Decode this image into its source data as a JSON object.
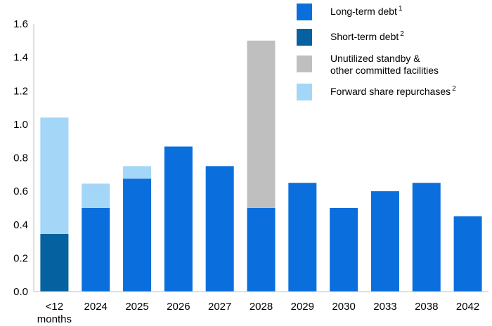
{
  "chart_data": {
    "type": "bar",
    "stacked": true,
    "categories": [
      "<12 months",
      "2024",
      "2025",
      "2026",
      "2027",
      "2028",
      "2029",
      "2030",
      "2033",
      "2038",
      "2042"
    ],
    "category_lines": [
      [
        "<12",
        "months"
      ],
      [
        "2024"
      ],
      [
        "2025"
      ],
      [
        "2026"
      ],
      [
        "2027"
      ],
      [
        "2028"
      ],
      [
        "2029"
      ],
      [
        "2030"
      ],
      [
        "2033"
      ],
      [
        "2038"
      ],
      [
        "2042"
      ]
    ],
    "series": [
      {
        "name": "Long-term debt",
        "sup": "1",
        "color": "#0a6fdc",
        "values": [
          0,
          0.5,
          0.675,
          0.867,
          0.75,
          0.5,
          0.65,
          0.5,
          0.6,
          0.65,
          0.45
        ]
      },
      {
        "name": "Short-term debt",
        "sup": "2",
        "color": "#05619f",
        "values": [
          0.345,
          0,
          0,
          0,
          0,
          0,
          0,
          0,
          0,
          0,
          0
        ]
      },
      {
        "name": "Unutilized standby & other committed facilities",
        "sup": "",
        "color": "#bfbfbf",
        "values": [
          0,
          0,
          0,
          0,
          0,
          1.0,
          0,
          0,
          0,
          0,
          0
        ]
      },
      {
        "name": "Forward share repurchases",
        "sup": "2",
        "color": "#a3d6f7",
        "values": [
          0.695,
          0.145,
          0.075,
          0,
          0,
          0,
          0,
          0,
          0,
          0,
          0
        ]
      }
    ],
    "legend": [
      {
        "lines": [
          "Long-term debt"
        ],
        "sup": "1",
        "color": "#0a6fdc"
      },
      {
        "lines": [
          "Short-term debt"
        ],
        "sup": "2",
        "color": "#05619f"
      },
      {
        "lines": [
          "Unutilized standby &",
          "other committed facilities"
        ],
        "sup": "",
        "color": "#bfbfbf"
      },
      {
        "lines": [
          "Forward share repurchases"
        ],
        "sup": "2",
        "color": "#a3d6f7"
      }
    ],
    "y_ticks": [
      "0.0",
      "0.2",
      "0.4",
      "0.6",
      "0.8",
      "1.0",
      "1.2",
      "1.4",
      "1.6"
    ],
    "ylim": [
      0,
      1.6
    ],
    "legend_position": "top-right",
    "grid": false
  }
}
